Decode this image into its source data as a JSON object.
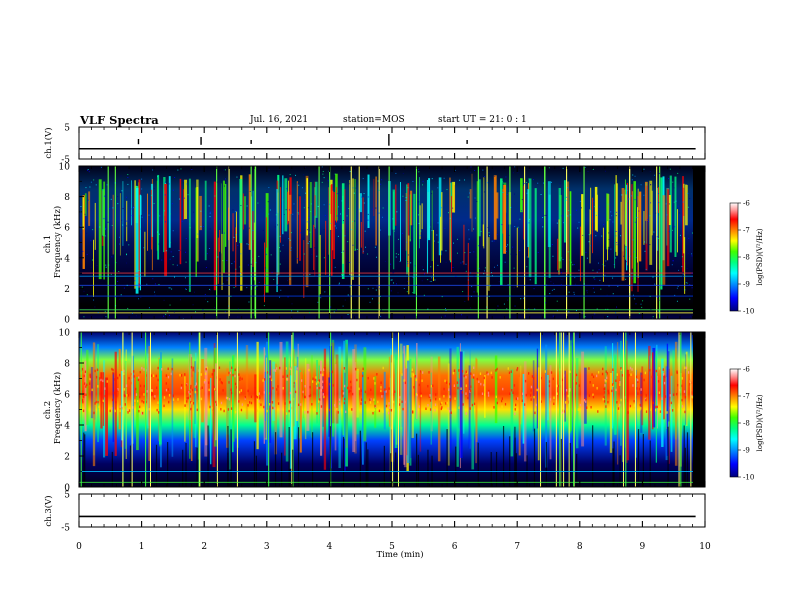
{
  "header": {
    "title": "VLF Spectra",
    "date": "Jul. 16, 2021",
    "station": "station=MOS",
    "start": "start UT =  21: 0  : 1"
  },
  "chart_data": [
    {
      "type": "line",
      "panel": "ch1-waveform",
      "ylabel": "ch.1(V)",
      "ylim": [
        -5,
        5
      ],
      "yticks": [
        "5",
        "-5"
      ],
      "xlim": [
        0,
        10
      ],
      "series": [
        {
          "x": [
            0,
            9.85
          ],
          "values": [
            -1.8,
            -1.8
          ]
        }
      ]
    },
    {
      "type": "heatmap",
      "panel": "ch1-spectrogram",
      "ylabel": "ch.1\nFrequency (kHz)",
      "ylim": [
        0,
        10
      ],
      "yticks": [
        "0",
        "2",
        "4",
        "6",
        "8",
        "10"
      ],
      "xlim": [
        0,
        10
      ],
      "colorbar": {
        "label": "log(PSD)(V²/Hz)",
        "range": [
          -10,
          -6
        ],
        "ticks": [
          "-6",
          "-7",
          "-8",
          "-9",
          "-10"
        ]
      }
    },
    {
      "type": "heatmap",
      "panel": "ch2-spectrogram",
      "ylabel": "ch.2\nFrequency (kHz)",
      "ylim": [
        0,
        10
      ],
      "yticks": [
        "0",
        "2",
        "4",
        "6",
        "8",
        "10"
      ],
      "xlim": [
        0,
        10
      ],
      "colorbar": {
        "label": "log(PSD)(V²/Hz)",
        "range": [
          -10,
          -6
        ],
        "ticks": [
          "-6",
          "-7",
          "-8",
          "-9",
          "-10"
        ]
      }
    },
    {
      "type": "line",
      "panel": "ch3-waveform",
      "ylabel": "ch.3(V)",
      "ylim": [
        -5,
        5
      ],
      "yticks": [
        "5",
        "-5"
      ],
      "xlim": [
        0,
        10
      ],
      "xlabel": "Time (min)",
      "xticks": [
        "0",
        "1",
        "2",
        "3",
        "4",
        "5",
        "6",
        "7",
        "8",
        "9",
        "10"
      ],
      "series": [
        {
          "x": [
            0,
            9.85
          ],
          "values": [
            -1.8,
            -1.8
          ]
        }
      ]
    }
  ],
  "colors": {
    "background_low": "#000030",
    "accent_high": "#ff0000",
    "colormap": [
      "#00007a",
      "#0000ff",
      "#0090ff",
      "#00ffff",
      "#00ff80",
      "#40ff00",
      "#ffff00",
      "#ff8000",
      "#ff0000",
      "#ff9090",
      "#ffffff"
    ]
  }
}
